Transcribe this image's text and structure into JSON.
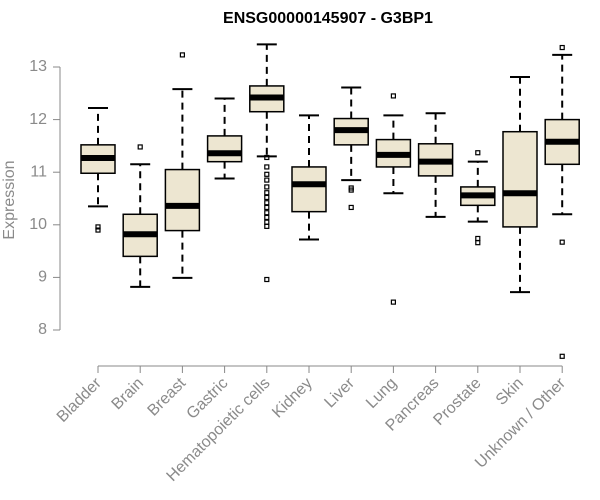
{
  "chart_data": {
    "type": "box",
    "title": "ENSG00000145907 - G3BP1",
    "xlabel": "",
    "ylabel": "Expression",
    "ylim": [
      7.4,
      13.6
    ],
    "yticks": [
      8,
      9,
      10,
      11,
      12,
      13
    ],
    "grid": false,
    "colors": {
      "box_fill": "#ede6d1",
      "stroke": "#000000",
      "axis": "#888888",
      "text": "#8a8a8a"
    },
    "categories": [
      "Bladder",
      "Brain",
      "Breast",
      "Gastric",
      "Hematopoietic cells",
      "Kidney",
      "Liver",
      "Lung",
      "Pancreas",
      "Prostate",
      "Skin",
      "Unknown / Other"
    ],
    "series": [
      {
        "category": "Bladder",
        "whisker_low": 10.35,
        "q1": 10.98,
        "median": 11.27,
        "q3": 11.52,
        "whisker_high": 12.22,
        "outliers": [
          9.9,
          9.96
        ]
      },
      {
        "category": "Brain",
        "whisker_low": 8.82,
        "q1": 9.4,
        "median": 9.82,
        "q3": 10.2,
        "whisker_high": 11.15,
        "outliers": [
          11.48
        ]
      },
      {
        "category": "Breast",
        "whisker_low": 8.99,
        "q1": 9.89,
        "median": 10.36,
        "q3": 11.05,
        "whisker_high": 12.58,
        "outliers": [
          13.23
        ]
      },
      {
        "category": "Gastric",
        "whisker_low": 10.88,
        "q1": 11.2,
        "median": 11.36,
        "q3": 11.69,
        "whisker_high": 12.4,
        "outliers": []
      },
      {
        "category": "Hematopoietic cells",
        "whisker_low": 11.3,
        "q1": 12.15,
        "median": 12.42,
        "q3": 12.64,
        "whisker_high": 13.43,
        "outliers": [
          11.28,
          11.1,
          10.96,
          10.85,
          10.72,
          10.61,
          10.52,
          10.42,
          10.33,
          10.23,
          10.14,
          10.05,
          9.97,
          8.96
        ]
      },
      {
        "category": "Kidney",
        "whisker_low": 9.72,
        "q1": 10.25,
        "median": 10.77,
        "q3": 11.1,
        "whisker_high": 12.08,
        "outliers": []
      },
      {
        "category": "Liver",
        "whisker_low": 10.85,
        "q1": 11.52,
        "median": 11.8,
        "q3": 12.02,
        "whisker_high": 12.61,
        "outliers": [
          10.7,
          10.66,
          10.33
        ]
      },
      {
        "category": "Lung",
        "whisker_low": 10.6,
        "q1": 11.1,
        "median": 11.33,
        "q3": 11.62,
        "whisker_high": 12.08,
        "outliers": [
          12.45,
          8.53
        ]
      },
      {
        "category": "Pancreas",
        "whisker_low": 10.15,
        "q1": 10.93,
        "median": 11.2,
        "q3": 11.54,
        "whisker_high": 12.12,
        "outliers": []
      },
      {
        "category": "Prostate",
        "whisker_low": 10.06,
        "q1": 10.37,
        "median": 10.56,
        "q3": 10.72,
        "whisker_high": 11.2,
        "outliers": [
          11.37,
          9.74,
          9.66
        ]
      },
      {
        "category": "Skin",
        "whisker_low": 8.72,
        "q1": 9.96,
        "median": 10.6,
        "q3": 11.77,
        "whisker_high": 12.81,
        "outliers": []
      },
      {
        "category": "Unknown / Other",
        "whisker_low": 10.2,
        "q1": 11.15,
        "median": 11.58,
        "q3": 12.0,
        "whisker_high": 13.23,
        "outliers": [
          13.37,
          9.67,
          7.5
        ]
      }
    ]
  }
}
